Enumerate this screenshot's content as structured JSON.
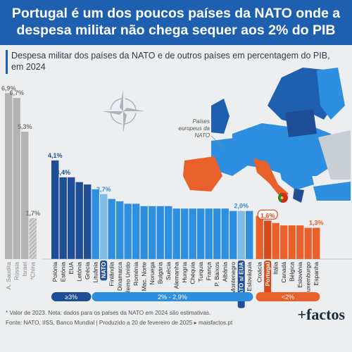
{
  "header": {
    "title": "Portugal é um dos poucos países da NATO onde a despesa militar não chega sequer aos 2% do PIB",
    "subtitle": "Despesa militar dos países da NATO e de outros países em percentagem do PIB, em 2024"
  },
  "map": {
    "label": "Países europeus da NATO"
  },
  "legend_groups": [
    {
      "label": "≥3%",
      "color": "#1f4e96"
    },
    {
      "label": "2% - 2,9%",
      "color": "#2e8fe0"
    },
    {
      "label": "<2%",
      "color": "#e8602a"
    }
  ],
  "footer": {
    "note": "* Valor de 2023. Nota: dados para os países da NATO em 2024 são estimativas.",
    "source": "Fonte: NATO, IISS, Banco Mundial | Produzido a 20 de fevereiro de 2025 ▸ maisfactos.pt",
    "logo": "+factos"
  },
  "colors": {
    "grey": "#b3b3b3",
    "dark_blue": "#1f4e96",
    "mid_blue": "#2e8fe0",
    "nato_bar": "#7fbde8",
    "orange": "#e8602a",
    "portugal": "#d94a1a",
    "title_bg": "#1f5fb0"
  },
  "chart_data": {
    "type": "bar",
    "title": "Despesa militar dos países da NATO e de outros países em percentagem do PIB, em 2024",
    "categories": [
      "A. Saudita",
      "Rússia",
      "Israel",
      "*China",
      "Polónia",
      "Estónia",
      "EUA",
      "Letónia",
      "Grécia",
      "Lituânia",
      "NATO",
      "Finlândia",
      "Dinamarca",
      "Reino Unido",
      "Roménia",
      "Mac. Norte",
      "Noruega",
      "Bulgária",
      "Suécia",
      "Alemanha",
      "Hungria",
      "Chéquia",
      "Turquia",
      "França",
      "P. Baixos",
      "Albânia",
      "Montenegro",
      "NATO s/ EUA",
      "Eslováquia",
      "Croácia",
      "Portugal",
      "Itália",
      "Canadá",
      "Bélgica",
      "Eslovénia",
      "Luxemburgo",
      "Espanha"
    ],
    "values": [
      6.9,
      6.7,
      5.3,
      1.7,
      4.1,
      3.4,
      3.4,
      3.2,
      3.1,
      2.9,
      2.7,
      2.5,
      2.4,
      2.3,
      2.3,
      2.2,
      2.2,
      2.2,
      2.2,
      2.1,
      2.1,
      2.1,
      2.1,
      2.1,
      2.1,
      2.1,
      2.0,
      2.0,
      2.0,
      1.8,
      1.6,
      1.5,
      1.4,
      1.4,
      1.4,
      1.3,
      1.3
    ],
    "groups": [
      "outros",
      "outros",
      "outros",
      "outros",
      "≥3%",
      "≥3%",
      "≥3%",
      "≥3%",
      "≥3%",
      "2% - 2,9%",
      "2% - 2,9%",
      "2% - 2,9%",
      "2% - 2,9%",
      "2% - 2,9%",
      "2% - 2,9%",
      "2% - 2,9%",
      "2% - 2,9%",
      "2% - 2,9%",
      "2% - 2,9%",
      "2% - 2,9%",
      "2% - 2,9%",
      "2% - 2,9%",
      "2% - 2,9%",
      "2% - 2,9%",
      "2% - 2,9%",
      "2% - 2,9%",
      "2% - 2,9%",
      "2% - 2,9%",
      "2% - 2,9%",
      "<2%",
      "<2%",
      "<2%",
      "<2%",
      "<2%",
      "<2%",
      "<2%",
      "<2%"
    ],
    "data_labels": {
      "0": "6,9%",
      "1": "6,7%",
      "2": "5,3%",
      "3": "1,7%",
      "4": "4,1%",
      "5": "3,4%",
      "10": "2,7%",
      "27": "2,0%",
      "30": "1,6%",
      "36": "1,3%"
    },
    "highlighted": [
      "NATO",
      "NATO s/ EUA",
      "Portugal"
    ],
    "ylim": [
      0,
      7.2
    ],
    "grid": false,
    "legend": "bottom"
  }
}
